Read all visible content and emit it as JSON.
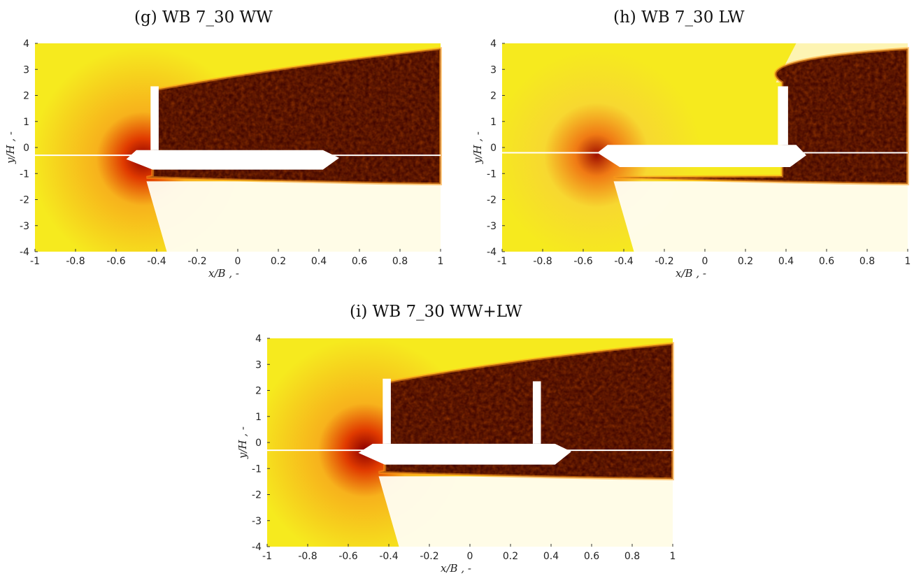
{
  "panels": [
    {
      "title": "(g) WB 7_30 WW",
      "config": "WW"
    },
    {
      "title": "(h) WB 7_30 LW",
      "config": "LW"
    },
    {
      "title": "(i) WB 7_30 WW+LW",
      "config": "WW+LW"
    }
  ],
  "axes": {
    "xlabel": "x/B , -",
    "ylabel": "y/H , -",
    "xlim": [
      -1,
      1
    ],
    "ylim": [
      -4,
      4
    ],
    "xticks": [
      "-1",
      "-0.8",
      "-0.6",
      "-0.4",
      "-0.2",
      "0",
      "0.2",
      "0.4",
      "0.6",
      "0.8",
      "1"
    ],
    "yticks": [
      "4",
      "3",
      "2",
      "1",
      "0",
      "-1",
      "-2",
      "-3",
      "-4"
    ]
  },
  "colors": {
    "freestream": "#f6ea1e",
    "wake_dark": "#2a0000",
    "wake_mid": "#b01000",
    "body": "#ffffff"
  }
}
